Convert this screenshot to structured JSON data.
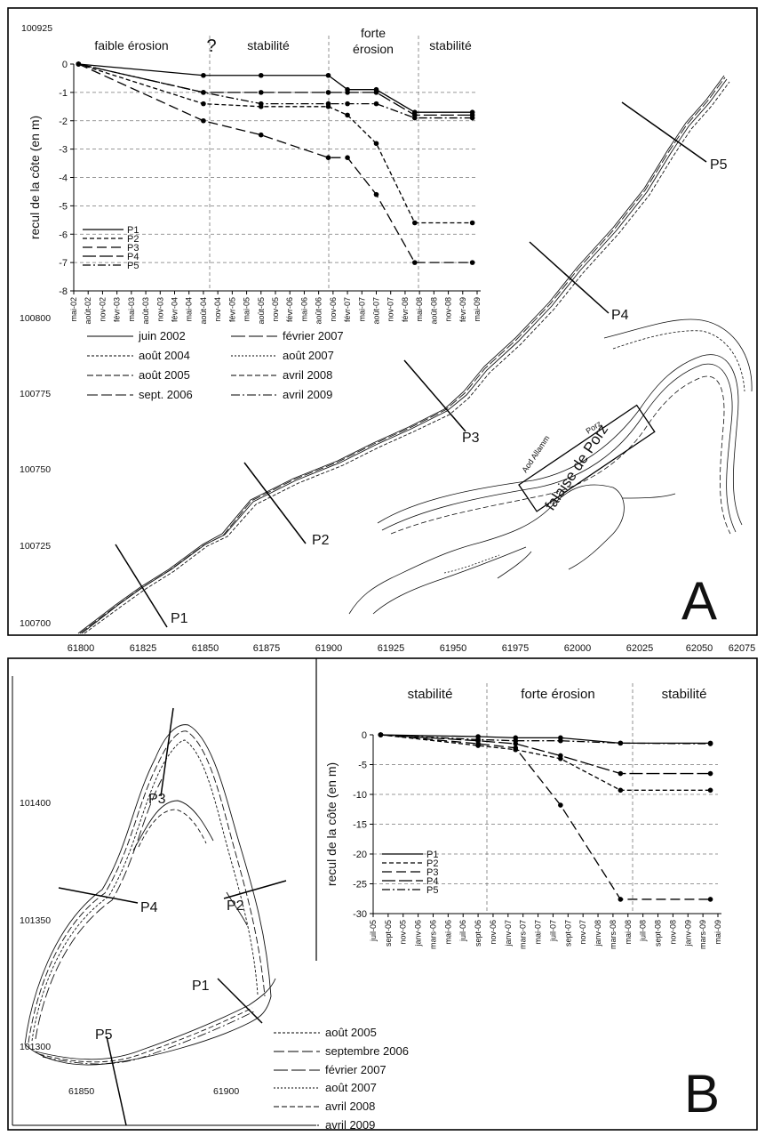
{
  "panel_a": {
    "letter": "A",
    "map": {
      "y_ticks": [
        "100925",
        "100800",
        "100775",
        "100750",
        "100725",
        "100700"
      ],
      "x_ticks": [
        "61800",
        "61825",
        "61850",
        "61875",
        "61900",
        "61925",
        "61950",
        "61975",
        "62000",
        "62025",
        "62050",
        "62075"
      ],
      "profiles": [
        "P1",
        "P2",
        "P3",
        "P4",
        "P5"
      ],
      "inset_label": "falaise de Porz",
      "place_labels": [
        "Aod Allamm",
        "Porz"
      ],
      "legend": [
        "juin 2002",
        "août 2004",
        "août 2005",
        "sept. 2006",
        "février 2007",
        "août 2007",
        "avril 2008",
        "avril 2009"
      ]
    },
    "chart_data": {
      "type": "line",
      "ylabel": "recul de la côte (en m)",
      "ylim": [
        -8,
        0
      ],
      "y_ticks": [
        "0",
        "-1",
        "-2",
        "-3",
        "-4",
        "-5",
        "-6",
        "-7",
        "-8"
      ],
      "x_tick_labels": [
        "mai-02",
        "août-02",
        "nov-02",
        "févr-03",
        "mai-03",
        "août-03",
        "nov-03",
        "févr-04",
        "mai-04",
        "août-04",
        "nov-04",
        "févr-05",
        "mai-05",
        "août-05",
        "nov-05",
        "févr-06",
        "mai-06",
        "août-06",
        "nov-06",
        "févr-07",
        "mai-07",
        "août-07",
        "nov-07",
        "févr-08",
        "mai-08",
        "août-08",
        "nov-08",
        "févr-09",
        "mai-09"
      ],
      "phases": [
        {
          "label": "faible érosion",
          "note": "?"
        },
        {
          "label": "stabilité"
        },
        {
          "label": "forte\nérosion"
        },
        {
          "label": "stabilité"
        }
      ],
      "series": [
        {
          "name": "P1",
          "dash": "",
          "x": [
            "juin-02",
            "août-04",
            "août-05",
            "oct-06",
            "févr-07",
            "août-07",
            "avr-08",
            "avr-09"
          ],
          "values": [
            0,
            -0.4,
            -0.4,
            -0.4,
            -0.9,
            -0.9,
            -1.7,
            -1.7
          ]
        },
        {
          "name": "P2",
          "dash": "5,3",
          "x": [
            "juin-02",
            "août-04",
            "août-05",
            "oct-06",
            "févr-07",
            "août-07",
            "avr-08",
            "avr-09"
          ],
          "values": [
            0,
            -1.4,
            -1.5,
            -1.5,
            -1.8,
            -2.8,
            -5.6,
            -5.6
          ]
        },
        {
          "name": "P3",
          "dash": "11,5",
          "x": [
            "juin-02",
            "août-04",
            "août-05",
            "oct-06",
            "févr-07",
            "août-07",
            "avr-08",
            "avr-09"
          ],
          "values": [
            0,
            -2.0,
            -2.5,
            -3.3,
            -3.3,
            -4.6,
            -7.0,
            -7.0
          ]
        },
        {
          "name": "P4",
          "dash": "15,4",
          "x": [
            "juin-02",
            "août-04",
            "août-05",
            "oct-06",
            "févr-07",
            "août-07",
            "avr-08",
            "avr-09"
          ],
          "values": [
            0,
            -1.0,
            -1.0,
            -1.0,
            -1.0,
            -1.0,
            -1.8,
            -1.8
          ]
        },
        {
          "name": "P5",
          "dash": "9,3,2,3",
          "x": [
            "juin-02",
            "août-04",
            "août-05",
            "oct-06",
            "févr-07",
            "août-07",
            "avr-08",
            "avr-09"
          ],
          "values": [
            0,
            -1.0,
            -1.4,
            -1.4,
            -1.4,
            -1.4,
            -1.9,
            -1.9
          ]
        }
      ]
    }
  },
  "panel_b": {
    "letter": "B",
    "map": {
      "y_ticks": [
        "101400",
        "101350",
        "101300"
      ],
      "x_ticks": [
        "61850",
        "61900"
      ],
      "profiles": [
        "P1",
        "P2",
        "P3",
        "P4",
        "P5"
      ],
      "legend": [
        "août 2005",
        "septembre 2006",
        "février 2007",
        "août 2007",
        "avril 2008",
        "avril 2009"
      ]
    },
    "chart_data": {
      "type": "line",
      "ylabel": "recul de la côte (en m)",
      "ylim": [
        -30,
        0
      ],
      "y_ticks": [
        "0",
        "-5",
        "-10",
        "-15",
        "-20",
        "-25",
        "-30"
      ],
      "x_tick_labels": [
        "juil-05",
        "sept-05",
        "nov-05",
        "janv-06",
        "mars-06",
        "mai-06",
        "juil-06",
        "sept-06",
        "nov-06",
        "janv-07",
        "mars-07",
        "mai-07",
        "juil-07",
        "sept-07",
        "nov-07",
        "janv-08",
        "mars-08",
        "mai-08",
        "juil-08",
        "sept-08",
        "nov-08",
        "janv-09",
        "mars-09",
        "mai-09"
      ],
      "phases": [
        {
          "label": "stabilité"
        },
        {
          "label": "forte érosion"
        },
        {
          "label": "stabilité"
        }
      ],
      "series": [
        {
          "name": "P1",
          "dash": "",
          "x": [
            "août-05",
            "sept-06",
            "févr-07",
            "août-07",
            "avr-08",
            "avr-09"
          ],
          "values": [
            0,
            -0.3,
            -0.5,
            -0.5,
            -1.4,
            -1.4
          ]
        },
        {
          "name": "P2",
          "dash": "5,3",
          "x": [
            "août-05",
            "sept-06",
            "févr-07",
            "août-07",
            "avr-08",
            "avr-09"
          ],
          "values": [
            0,
            -1.8,
            -2.5,
            -4.0,
            -9.3,
            -9.3
          ]
        },
        {
          "name": "P3",
          "dash": "11,5",
          "x": [
            "août-05",
            "sept-06",
            "févr-07",
            "août-07",
            "avr-08",
            "avr-09"
          ],
          "values": [
            0,
            -1.5,
            -2.2,
            -11.8,
            -27.6,
            -27.6
          ]
        },
        {
          "name": "P4",
          "dash": "15,4",
          "x": [
            "août-05",
            "sept-06",
            "févr-07",
            "août-07",
            "avr-08",
            "avr-09"
          ],
          "values": [
            0,
            -1.0,
            -1.5,
            -3.5,
            -6.5,
            -6.5
          ]
        },
        {
          "name": "P5",
          "dash": "9,3,2,3",
          "x": [
            "août-05",
            "sept-06",
            "févr-07",
            "août-07",
            "avr-08",
            "avr-09"
          ],
          "values": [
            0,
            -0.8,
            -1.0,
            -1.0,
            -1.4,
            -1.5
          ]
        }
      ]
    }
  }
}
